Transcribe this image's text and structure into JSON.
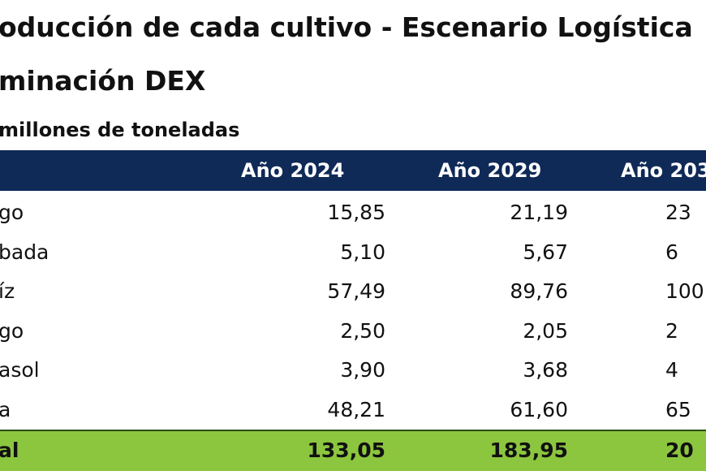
{
  "header": {
    "title_line1": "oducción de cada cultivo - Escenario Logística",
    "title_line2": "minación DEX",
    "subtitle": "millones de toneladas"
  },
  "table": {
    "columns": [
      "Año 2024",
      "Año 2029",
      "Año 203"
    ],
    "rows": [
      [
        "go",
        "15,85",
        "21,19",
        "23"
      ],
      [
        "bada",
        "5,10",
        "5,67",
        "6"
      ],
      [
        "íz",
        "57,49",
        "89,76",
        "100"
      ],
      [
        "go",
        "2,50",
        "2,05",
        "2"
      ],
      [
        "asol",
        "3,90",
        "3,68",
        "4"
      ],
      [
        "a",
        "48,21",
        "61,60",
        "65"
      ]
    ],
    "total": [
      "al",
      "133,05",
      "183,95",
      "20"
    ]
  }
}
